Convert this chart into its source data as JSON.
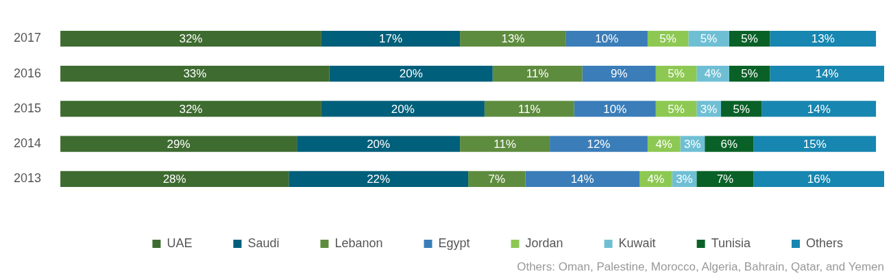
{
  "chart_data": {
    "type": "bar",
    "orientation": "horizontal",
    "stacked": true,
    "categories": [
      "2017",
      "2016",
      "2015",
      "2014",
      "2013"
    ],
    "series": [
      {
        "name": "UAE",
        "color": "#3e6b30",
        "values": [
          32,
          33,
          32,
          29,
          28
        ],
        "value_labels": [
          "32%",
          "33%",
          "32%",
          "29%",
          "28%"
        ]
      },
      {
        "name": "Saudi",
        "color": "#005f7a",
        "values": [
          17,
          20,
          20,
          20,
          22
        ],
        "value_labels": [
          "17%",
          "20%",
          "20%",
          "20%",
          "22%"
        ]
      },
      {
        "name": "Lebanon",
        "color": "#5e8c3e",
        "values": [
          13,
          11,
          11,
          11,
          7
        ],
        "value_labels": [
          "13%",
          "11%",
          "11%",
          "11%",
          "7%"
        ]
      },
      {
        "name": "Egypt",
        "color": "#3a7db8",
        "values": [
          10,
          9,
          10,
          12,
          14
        ],
        "value_labels": [
          "10%",
          "9%",
          "10%",
          "12%",
          "14%"
        ]
      },
      {
        "name": "Jordan",
        "color": "#8dc853",
        "values": [
          5,
          5,
          5,
          4,
          4
        ],
        "value_labels": [
          "5%",
          "5%",
          "5%",
          "4%",
          "4%"
        ]
      },
      {
        "name": "Kuwait",
        "color": "#6fbfd4",
        "values": [
          5,
          4,
          3,
          3,
          3
        ],
        "value_labels": [
          "5%",
          "4%",
          "3%",
          "3%",
          "3%"
        ]
      },
      {
        "name": "Tunisia",
        "color": "#0a6127",
        "values": [
          5,
          5,
          5,
          6,
          7
        ],
        "value_labels": [
          "5%",
          "5%",
          "5%",
          "6%",
          "7%"
        ]
      },
      {
        "name": "Others",
        "color": "#1786b0",
        "values": [
          13,
          14,
          14,
          15,
          16
        ],
        "value_labels": [
          "13%",
          "14%",
          "14%",
          "15%",
          "16%"
        ]
      }
    ],
    "tick_labels": "y",
    "legend": "bottom",
    "annotations": [
      "Others: Oman, Palestine, Morocco, Algeria, Bahrain, Qatar, and Yemen"
    ]
  }
}
